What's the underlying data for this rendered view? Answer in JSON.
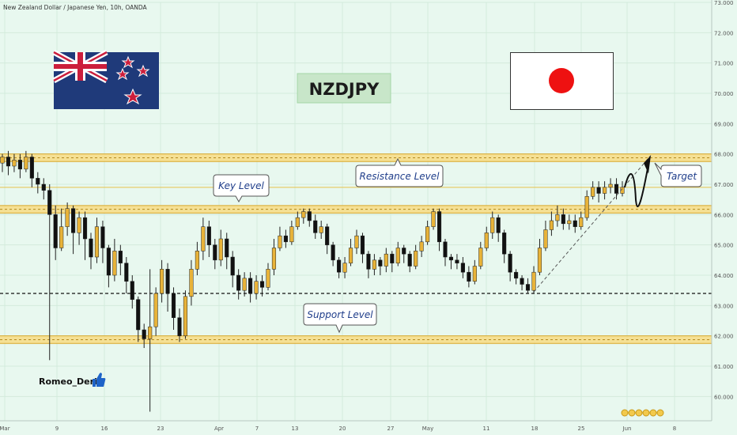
{
  "header": {
    "symbol_caption": "New Zealand Dollar / Japanese Yen, 10h, OANDA"
  },
  "title_badge": "NZDJPY",
  "author": "Romeo_Deris",
  "labels": {
    "key_level": "Key Level",
    "resistance_level": "Resistance Level",
    "support_level": "Support Level",
    "target": "Target"
  },
  "icons": {
    "nz_flag": "new-zealand-flag",
    "jp_flag": "japan-flag",
    "thumbs_up": "thumbs-up-icon",
    "coins": "coins-icon"
  },
  "colors": {
    "background": "#e8f8ef",
    "candle_up": "#e8b339",
    "candle_down": "#111111",
    "zone_fill": "#f6dd8a",
    "zone_border": "#d9a82b",
    "callout_text": "#1f3d8a",
    "badge_bg": "#c8e6c9"
  },
  "chart_data": {
    "type": "candlestick",
    "ylim": [
      59.2,
      73.0
    ],
    "y_ticks": [
      60.0,
      61.0,
      62.0,
      63.0,
      64.0,
      65.0,
      66.0,
      67.0,
      68.0,
      69.0,
      70.0,
      71.0,
      72.0,
      73.0
    ],
    "x_ticks": [
      "Mar",
      "9",
      "16",
      "23",
      "Apr",
      "7",
      "13",
      "20",
      "27",
      "May",
      "11",
      "18",
      "25",
      "Jun",
      "8"
    ],
    "zones": [
      {
        "name": "resistance",
        "low": 67.75,
        "high": 68.0
      },
      {
        "name": "key",
        "low": 66.05,
        "high": 66.3
      },
      {
        "name": "support",
        "low": 61.75,
        "high": 62.0
      }
    ],
    "key_line": 66.9,
    "dashed_level": 63.4,
    "trendline": {
      "from": 63.45,
      "to": 67.95
    },
    "candles": [
      [
        67.7,
        67.9,
        68.0,
        67.4
      ],
      [
        67.9,
        67.6,
        68.1,
        67.3
      ],
      [
        67.6,
        67.8,
        68.0,
        67.4
      ],
      [
        67.8,
        67.5,
        68.0,
        67.2
      ],
      [
        67.5,
        67.9,
        68.1,
        67.4
      ],
      [
        67.9,
        67.2,
        68.0,
        66.9
      ],
      [
        67.2,
        67.0,
        67.4,
        66.7
      ],
      [
        67.0,
        66.8,
        67.2,
        66.5
      ],
      [
        66.8,
        66.0,
        67.0,
        61.2
      ],
      [
        66.0,
        64.9,
        66.3,
        64.5
      ],
      [
        64.9,
        65.6,
        66.2,
        64.8
      ],
      [
        65.6,
        66.2,
        66.4,
        65.3
      ],
      [
        66.2,
        65.4,
        66.3,
        64.7
      ],
      [
        65.4,
        65.9,
        66.1,
        65.0
      ],
      [
        65.9,
        65.2,
        66.1,
        64.5
      ],
      [
        65.2,
        64.6,
        65.4,
        64.2
      ],
      [
        64.6,
        65.6,
        65.9,
        64.4
      ],
      [
        65.6,
        64.9,
        65.8,
        64.4
      ],
      [
        64.9,
        64.0,
        65.0,
        63.6
      ],
      [
        64.0,
        64.8,
        65.2,
        63.8
      ],
      [
        64.8,
        64.4,
        65.0,
        64.0
      ],
      [
        64.4,
        63.8,
        64.6,
        63.4
      ],
      [
        63.8,
        63.2,
        64.0,
        62.9
      ],
      [
        63.2,
        62.2,
        63.3,
        61.8
      ],
      [
        62.2,
        61.9,
        62.4,
        61.6
      ],
      [
        61.9,
        62.3,
        64.2,
        59.5
      ],
      [
        62.3,
        63.4,
        63.6,
        62.0
      ],
      [
        63.4,
        64.2,
        64.5,
        63.1
      ],
      [
        64.2,
        63.4,
        64.4,
        62.8
      ],
      [
        63.4,
        62.6,
        63.6,
        62.2
      ],
      [
        62.6,
        62.0,
        62.9,
        61.8
      ],
      [
        62.0,
        63.3,
        63.5,
        61.9
      ],
      [
        63.3,
        64.2,
        64.5,
        63.0
      ],
      [
        64.2,
        64.8,
        65.1,
        64.0
      ],
      [
        64.8,
        65.6,
        65.9,
        64.5
      ],
      [
        65.6,
        65.0,
        65.8,
        64.6
      ],
      [
        65.0,
        64.5,
        65.2,
        64.2
      ],
      [
        64.5,
        65.2,
        65.5,
        64.3
      ],
      [
        65.2,
        64.6,
        65.4,
        64.2
      ],
      [
        64.6,
        64.0,
        64.8,
        63.6
      ],
      [
        64.0,
        63.5,
        64.2,
        63.2
      ],
      [
        63.5,
        63.9,
        64.1,
        63.3
      ],
      [
        63.9,
        63.4,
        64.1,
        63.1
      ],
      [
        63.4,
        63.8,
        64.0,
        63.2
      ],
      [
        63.8,
        63.6,
        64.0,
        63.3
      ],
      [
        63.6,
        64.2,
        64.4,
        63.5
      ],
      [
        64.2,
        64.9,
        65.2,
        64.0
      ],
      [
        64.9,
        65.3,
        65.6,
        64.8
      ],
      [
        65.3,
        65.1,
        65.5,
        64.9
      ],
      [
        65.1,
        65.6,
        65.8,
        65.0
      ],
      [
        65.6,
        65.9,
        66.1,
        65.5
      ],
      [
        65.9,
        66.1,
        66.2,
        65.7
      ],
      [
        66.1,
        65.8,
        66.2,
        65.6
      ],
      [
        65.8,
        65.4,
        66.0,
        65.2
      ],
      [
        65.4,
        65.6,
        65.8,
        65.2
      ],
      [
        65.6,
        65.0,
        65.7,
        64.7
      ],
      [
        65.0,
        64.5,
        65.1,
        64.3
      ],
      [
        64.5,
        64.1,
        64.6,
        63.9
      ],
      [
        64.1,
        64.4,
        64.6,
        63.9
      ],
      [
        64.4,
        64.9,
        65.2,
        64.3
      ],
      [
        64.9,
        65.3,
        65.5,
        64.7
      ],
      [
        65.3,
        64.7,
        65.4,
        64.4
      ],
      [
        64.7,
        64.2,
        64.8,
        63.9
      ],
      [
        64.2,
        64.5,
        64.7,
        64.0
      ],
      [
        64.5,
        64.3,
        64.6,
        64.0
      ],
      [
        64.3,
        64.7,
        64.9,
        64.1
      ],
      [
        64.7,
        64.4,
        64.8,
        64.1
      ],
      [
        64.4,
        64.9,
        65.1,
        64.3
      ],
      [
        64.9,
        64.7,
        65.0,
        64.4
      ],
      [
        64.7,
        64.3,
        64.8,
        64.1
      ],
      [
        64.3,
        64.8,
        65.0,
        64.2
      ],
      [
        64.8,
        65.1,
        65.3,
        64.6
      ],
      [
        65.1,
        65.6,
        65.8,
        65.0
      ],
      [
        65.6,
        66.1,
        66.2,
        65.5
      ],
      [
        66.1,
        65.1,
        66.2,
        64.8
      ],
      [
        65.1,
        64.6,
        65.2,
        64.3
      ],
      [
        64.6,
        64.5,
        64.7,
        64.2
      ],
      [
        64.5,
        64.4,
        64.7,
        64.2
      ],
      [
        64.4,
        64.1,
        64.6,
        63.9
      ],
      [
        64.1,
        63.8,
        64.3,
        63.6
      ],
      [
        63.8,
        64.3,
        64.5,
        63.7
      ],
      [
        64.3,
        64.9,
        65.1,
        64.2
      ],
      [
        64.9,
        65.4,
        65.6,
        64.8
      ],
      [
        65.4,
        65.9,
        66.1,
        65.2
      ],
      [
        65.9,
        65.4,
        66.0,
        65.1
      ],
      [
        65.4,
        64.7,
        65.5,
        64.4
      ],
      [
        64.7,
        64.1,
        64.8,
        63.8
      ],
      [
        64.1,
        63.9,
        64.2,
        63.7
      ],
      [
        63.9,
        63.7,
        64.0,
        63.5
      ],
      [
        63.7,
        63.5,
        63.9,
        63.4
      ],
      [
        63.5,
        64.1,
        64.3,
        63.4
      ],
      [
        64.1,
        64.9,
        65.2,
        64.0
      ],
      [
        64.9,
        65.5,
        65.8,
        64.8
      ],
      [
        65.5,
        65.8,
        66.1,
        65.3
      ],
      [
        65.8,
        66.0,
        66.3,
        65.6
      ],
      [
        66.0,
        65.7,
        66.2,
        65.5
      ],
      [
        65.7,
        65.8,
        66.0,
        65.5
      ],
      [
        65.8,
        65.6,
        66.0,
        65.4
      ],
      [
        65.6,
        65.9,
        66.1,
        65.5
      ],
      [
        65.9,
        66.6,
        66.8,
        65.8
      ],
      [
        66.6,
        66.9,
        67.1,
        66.5
      ],
      [
        66.9,
        66.7,
        67.1,
        66.4
      ],
      [
        66.7,
        66.9,
        67.1,
        66.5
      ],
      [
        66.9,
        67.0,
        67.2,
        66.7
      ],
      [
        67.0,
        66.7,
        67.2,
        66.5
      ],
      [
        66.7,
        66.9,
        67.1,
        66.6
      ]
    ]
  }
}
